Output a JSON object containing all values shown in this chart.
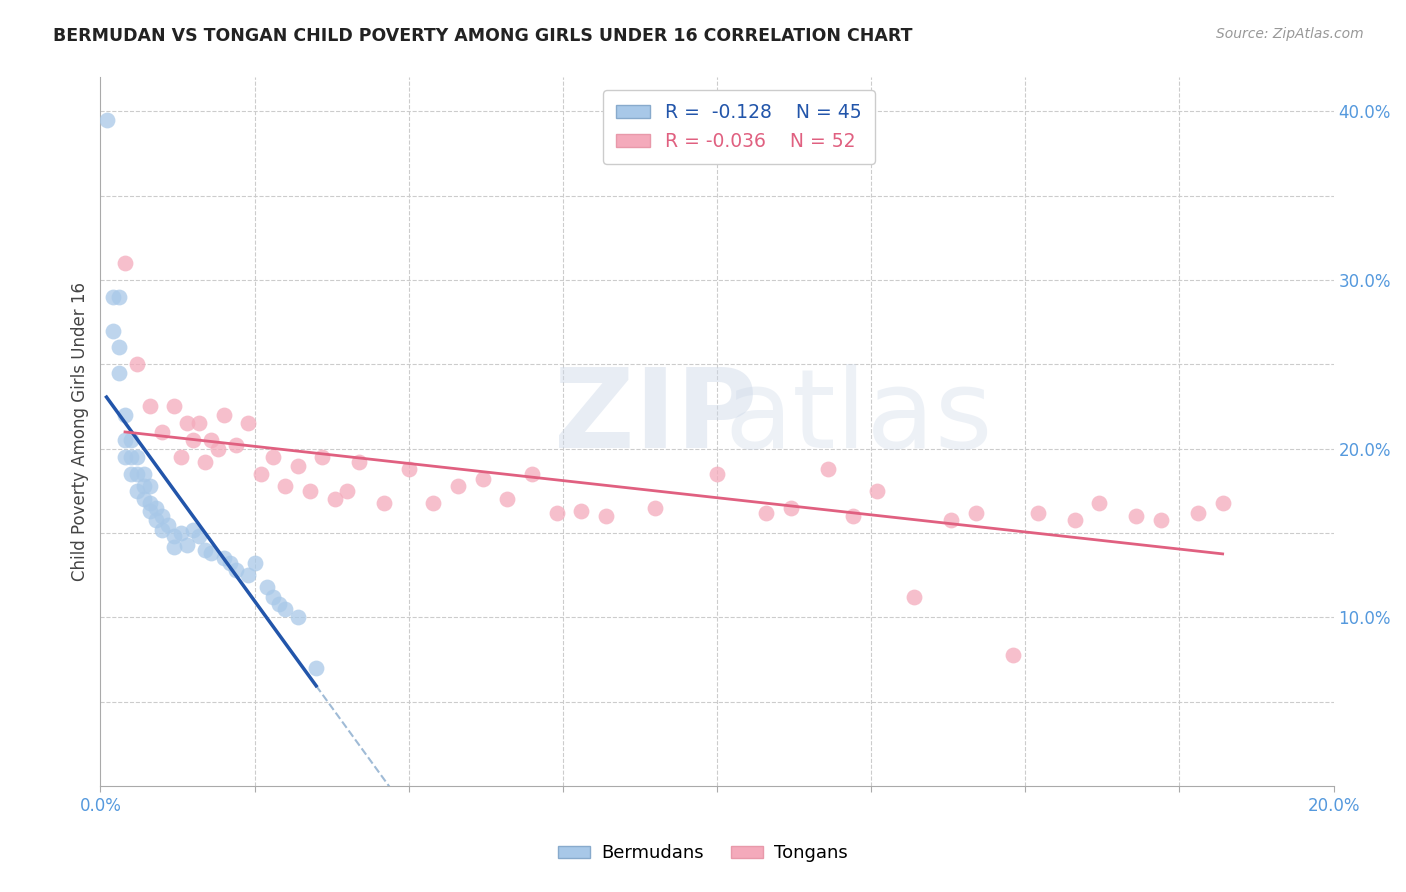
{
  "title": "BERMUDAN VS TONGAN CHILD POVERTY AMONG GIRLS UNDER 16 CORRELATION CHART",
  "source": "Source: ZipAtlas.com",
  "ylabel_label": "Child Poverty Among Girls Under 16",
  "xlim": [
    0.0,
    0.2
  ],
  "ylim": [
    0.0,
    0.42
  ],
  "bermuda_color": "#a8c8e8",
  "tonga_color": "#f4aabb",
  "bermuda_line_color": "#2255aa",
  "tonga_line_color": "#e06080",
  "dashed_line_color": "#88aacc",
  "bermuda_x": [
    0.001,
    0.002,
    0.002,
    0.003,
    0.003,
    0.003,
    0.004,
    0.004,
    0.004,
    0.005,
    0.005,
    0.005,
    0.006,
    0.006,
    0.006,
    0.007,
    0.007,
    0.007,
    0.008,
    0.008,
    0.008,
    0.009,
    0.009,
    0.01,
    0.01,
    0.011,
    0.012,
    0.012,
    0.013,
    0.014,
    0.015,
    0.016,
    0.017,
    0.018,
    0.02,
    0.021,
    0.022,
    0.024,
    0.025,
    0.027,
    0.028,
    0.029,
    0.03,
    0.032,
    0.035
  ],
  "bermuda_y": [
    0.395,
    0.29,
    0.27,
    0.29,
    0.26,
    0.245,
    0.22,
    0.205,
    0.195,
    0.205,
    0.195,
    0.185,
    0.195,
    0.185,
    0.175,
    0.185,
    0.178,
    0.17,
    0.178,
    0.168,
    0.163,
    0.165,
    0.158,
    0.16,
    0.152,
    0.155,
    0.148,
    0.142,
    0.15,
    0.143,
    0.152,
    0.148,
    0.14,
    0.138,
    0.135,
    0.132,
    0.128,
    0.125,
    0.132,
    0.118,
    0.112,
    0.108,
    0.105,
    0.1,
    0.07
  ],
  "tonga_x": [
    0.004,
    0.006,
    0.008,
    0.01,
    0.012,
    0.013,
    0.014,
    0.015,
    0.016,
    0.017,
    0.018,
    0.019,
    0.02,
    0.022,
    0.024,
    0.026,
    0.028,
    0.03,
    0.032,
    0.034,
    0.036,
    0.038,
    0.04,
    0.042,
    0.046,
    0.05,
    0.054,
    0.058,
    0.062,
    0.066,
    0.07,
    0.074,
    0.078,
    0.082,
    0.09,
    0.1,
    0.108,
    0.112,
    0.118,
    0.122,
    0.126,
    0.132,
    0.138,
    0.142,
    0.148,
    0.152,
    0.158,
    0.162,
    0.168,
    0.172,
    0.178,
    0.182
  ],
  "tonga_y": [
    0.31,
    0.25,
    0.225,
    0.21,
    0.225,
    0.195,
    0.215,
    0.205,
    0.215,
    0.192,
    0.205,
    0.2,
    0.22,
    0.202,
    0.215,
    0.185,
    0.195,
    0.178,
    0.19,
    0.175,
    0.195,
    0.17,
    0.175,
    0.192,
    0.168,
    0.188,
    0.168,
    0.178,
    0.182,
    0.17,
    0.185,
    0.162,
    0.163,
    0.16,
    0.165,
    0.185,
    0.162,
    0.165,
    0.188,
    0.16,
    0.175,
    0.112,
    0.158,
    0.162,
    0.078,
    0.162,
    0.158,
    0.168,
    0.16,
    0.158,
    0.162,
    0.168
  ],
  "grid_x": [
    0.025,
    0.05,
    0.075,
    0.1,
    0.125,
    0.15,
    0.175
  ],
  "grid_y": [
    0.05,
    0.1,
    0.15,
    0.2,
    0.25,
    0.3,
    0.35,
    0.4
  ],
  "right_yticks": [
    0.1,
    0.2,
    0.3,
    0.4
  ],
  "right_yticklabels": [
    "10.0%",
    "20.0%",
    "30.0%",
    "40.0%"
  ]
}
